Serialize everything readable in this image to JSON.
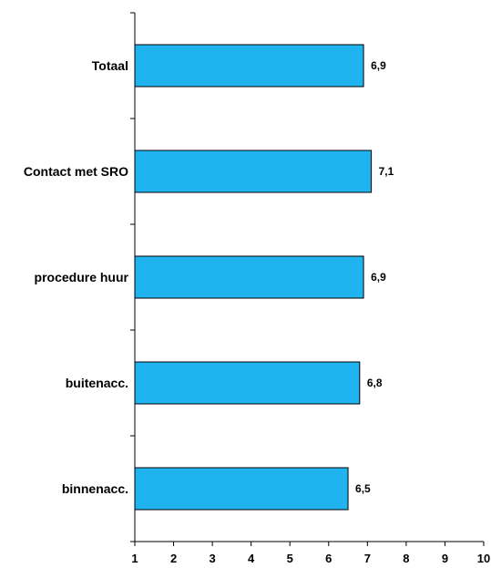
{
  "chart_data": {
    "type": "bar",
    "orientation": "horizontal",
    "categories": [
      "Totaal",
      "Contact met SRO",
      "procedure huur",
      "buitenacc.",
      "binnenacc."
    ],
    "values": [
      6.9,
      7.1,
      6.9,
      6.8,
      6.5
    ],
    "value_labels": [
      "6,9",
      "7,1",
      "6,9",
      "6,8",
      "6,5"
    ],
    "xlim": [
      1,
      10
    ],
    "x_ticks": [
      "1",
      "2",
      "3",
      "4",
      "5",
      "6",
      "7",
      "8",
      "9",
      "10"
    ],
    "title": "",
    "xlabel": "",
    "ylabel": "",
    "grid": false,
    "legend": "none",
    "colors": {
      "bar_fill": "#1fb4f0",
      "bar_stroke": "#000000",
      "axis": "#000000"
    }
  }
}
